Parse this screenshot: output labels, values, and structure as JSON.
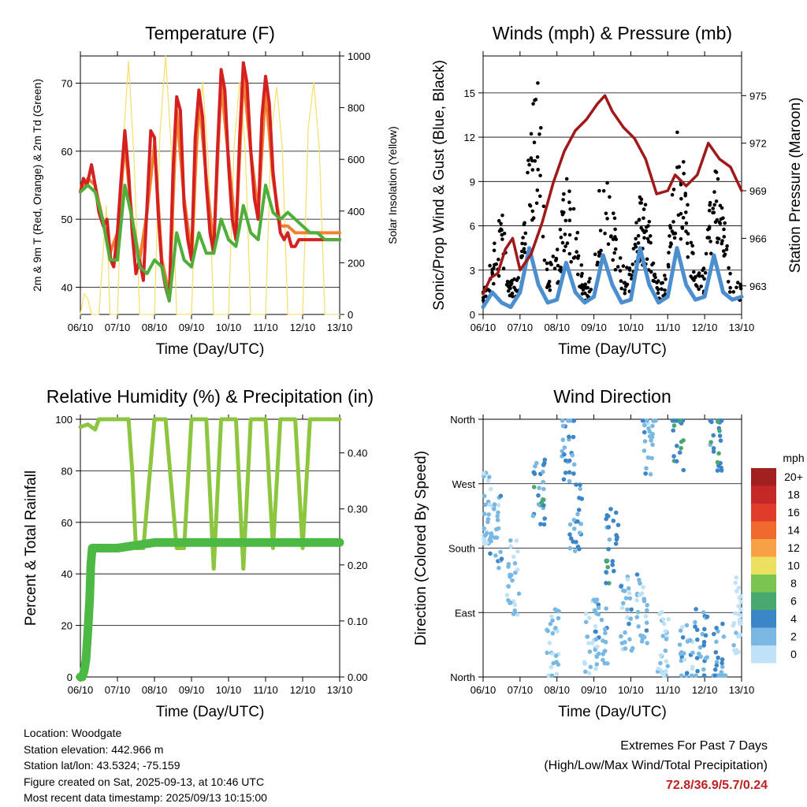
{
  "chart_data": [
    {
      "type": "line",
      "title": "Temperature (F)",
      "xlabel": "Time (Day/UTC)",
      "ylabel": "2m & 9m T (Red, Orange) & 2m Td (Green)",
      "y2label": "Solar Insolation (Yellow)",
      "x_ticks": [
        "06/10",
        "07/10",
        "08/10",
        "09/10",
        "10/10",
        "11/10",
        "12/10",
        "13/10"
      ],
      "ylim": [
        36,
        74
      ],
      "yticks": [
        40,
        50,
        60,
        70
      ],
      "y2lim": [
        0,
        1000
      ],
      "y2ticks": [
        0,
        200,
        400,
        600,
        800,
        1000
      ],
      "grid": true,
      "colors": {
        "t2m": "#d42020",
        "t9m": "#f08030",
        "td": "#4fae3a",
        "solar": "#f6e070"
      },
      "series": [
        {
          "key": "t2m",
          "axis": "left",
          "x": [
            0,
            0.08,
            0.18,
            0.3,
            0.4,
            0.5,
            0.62,
            0.72,
            0.82,
            0.9,
            1,
            1.1,
            1.2,
            1.3,
            1.4,
            1.5,
            1.6,
            1.7,
            1.8,
            1.9,
            2,
            2.1,
            2.2,
            2.3,
            2.4,
            2.5,
            2.6,
            2.7,
            2.8,
            2.9,
            3,
            3.1,
            3.2,
            3.3,
            3.4,
            3.5,
            3.6,
            3.7,
            3.8,
            3.9,
            4,
            4.1,
            4.2,
            4.3,
            4.4,
            4.5,
            4.6,
            4.7,
            4.8,
            4.9,
            5,
            5.1,
            5.2,
            5.3,
            5.4,
            5.5,
            5.6,
            5.7,
            5.8,
            5.9,
            6,
            6.1,
            6.2,
            6.3,
            6.4,
            6.5,
            6.6,
            6.7,
            6.8,
            6.9,
            7
          ],
          "values": [
            54,
            56,
            55,
            58,
            55,
            51,
            49,
            50,
            44,
            43,
            48,
            56,
            63,
            57,
            48,
            42,
            44,
            41,
            52,
            63,
            62,
            51,
            43,
            40,
            38,
            57,
            68,
            66,
            52,
            47,
            44,
            62,
            69,
            65,
            55,
            48,
            45,
            60,
            72,
            69,
            58,
            50,
            47,
            62,
            73,
            70,
            60,
            53,
            50,
            65,
            71,
            67,
            57,
            52,
            48,
            47,
            48,
            46,
            46,
            47,
            47,
            47,
            47,
            47,
            47,
            47,
            47,
            47,
            47,
            47,
            47
          ]
        },
        {
          "key": "t9m",
          "axis": "left",
          "x": [
            0,
            0.2,
            0.4,
            0.6,
            0.8,
            1,
            1.2,
            1.4,
            1.6,
            1.8,
            2,
            2.2,
            2.4,
            2.6,
            2.8,
            3,
            3.2,
            3.4,
            3.6,
            3.8,
            4,
            4.2,
            4.4,
            4.6,
            4.8,
            5,
            5.2,
            5.4,
            5.6,
            5.8,
            6,
            6.2,
            6.4,
            6.6,
            6.8,
            7
          ],
          "values": [
            54,
            56,
            55,
            50,
            45,
            48,
            61,
            50,
            44,
            51,
            61,
            44,
            39,
            66,
            53,
            45,
            68,
            56,
            46,
            70,
            59,
            48,
            71,
            60,
            51,
            69,
            56,
            49,
            49,
            48,
            48,
            48,
            48,
            48,
            48,
            48
          ]
        },
        {
          "key": "td",
          "axis": "left",
          "x": [
            0,
            0.2,
            0.4,
            0.6,
            0.8,
            1,
            1.2,
            1.4,
            1.6,
            1.8,
            2,
            2.2,
            2.4,
            2.6,
            2.8,
            3,
            3.2,
            3.4,
            3.6,
            3.8,
            4,
            4.2,
            4.4,
            4.6,
            4.8,
            5,
            5.2,
            5.4,
            5.6,
            5.8,
            6,
            6.2,
            6.4,
            6.6,
            6.8,
            7
          ],
          "values": [
            54,
            55,
            54,
            50,
            44,
            44,
            55,
            50,
            43,
            42,
            44,
            43,
            38,
            48,
            44,
            43,
            48,
            45,
            45,
            50,
            47,
            46,
            52,
            48,
            47,
            55,
            51,
            50,
            51,
            50,
            49,
            48,
            48,
            47,
            47,
            47
          ]
        },
        {
          "key": "solar",
          "axis": "right",
          "x": [
            0,
            0.1,
            0.2,
            0.3,
            0.5,
            0.7,
            0.8,
            1,
            1.15,
            1.3,
            1.45,
            1.6,
            1.8,
            2,
            2.15,
            2.3,
            2.45,
            2.6,
            2.8,
            3,
            3.15,
            3.3,
            3.45,
            3.6,
            3.8,
            4,
            4.15,
            4.3,
            4.45,
            4.6,
            4.8,
            5,
            5.15,
            5.3,
            5.45,
            5.6,
            5.8,
            6,
            6.15,
            6.3,
            6.45,
            6.6,
            6.8,
            7
          ],
          "values": [
            0,
            80,
            60,
            0,
            0,
            420,
            0,
            0,
            650,
            980,
            600,
            0,
            0,
            0,
            700,
            1000,
            650,
            0,
            0,
            0,
            620,
            900,
            600,
            0,
            0,
            0,
            650,
            900,
            640,
            0,
            0,
            0,
            700,
            880,
            650,
            0,
            0,
            0,
            720,
            900,
            640,
            0,
            0,
            0
          ]
        }
      ]
    },
    {
      "type": "line",
      "title": "Winds (mph) & Pressure (mb)",
      "xlabel": "Time (Day/UTC)",
      "ylabel": "Sonic/Prop Wind & Gust (Blue, Black)",
      "y2label": "Station Pressure (Maroon)",
      "x_ticks": [
        "06/10",
        "07/10",
        "08/10",
        "09/10",
        "10/10",
        "11/10",
        "12/10",
        "13/10"
      ],
      "ylim": [
        0,
        17.5
      ],
      "yticks": [
        0,
        3,
        6,
        9,
        12,
        15
      ],
      "y2lim": [
        961.2,
        977.5
      ],
      "y2ticks": [
        963,
        966,
        969,
        972,
        975
      ],
      "grid": true,
      "colors": {
        "wind": "#4b8fd0",
        "gust": "#000000",
        "pressure": "#a01818"
      },
      "series": [
        {
          "key": "wind",
          "axis": "left",
          "x": [
            0,
            0.25,
            0.5,
            0.75,
            1,
            1.25,
            1.5,
            1.75,
            2,
            2.25,
            2.5,
            2.75,
            3,
            3.25,
            3.5,
            3.75,
            4,
            4.25,
            4.5,
            4.75,
            5,
            5.25,
            5.5,
            5.75,
            6,
            6.25,
            6.5,
            6.75,
            7
          ],
          "values": [
            0.5,
            1.5,
            0.8,
            0.5,
            1.5,
            4.5,
            2,
            0.8,
            1,
            3.5,
            1.5,
            0.8,
            1.2,
            4,
            2,
            0.8,
            1,
            4.5,
            2,
            0.8,
            1.2,
            4.5,
            2,
            1,
            1.2,
            4,
            1.5,
            1,
            1.2
          ]
        },
        {
          "key": "gust",
          "axis": "left",
          "x": [
            0,
            0.25,
            0.5,
            0.75,
            1,
            1.25,
            1.5,
            1.75,
            2,
            2.25,
            2.5,
            2.75,
            3,
            3.25,
            3.5,
            3.75,
            4,
            4.25,
            4.5,
            4.75,
            5,
            5.25,
            5.5,
            5.75,
            6,
            6.25,
            6.5,
            6.75,
            7
          ],
          "values": [
            1.5,
            4,
            6.5,
            2,
            3,
            12,
            15,
            3,
            4,
            9,
            6,
            2,
            3,
            11,
            7,
            3,
            3,
            8,
            6,
            2,
            3,
            13,
            8,
            3,
            3,
            10,
            7,
            2,
            2
          ]
        },
        {
          "key": "pressure",
          "axis": "right",
          "x": [
            0,
            0.2,
            0.4,
            0.6,
            0.8,
            1,
            1.3,
            1.6,
            1.9,
            2.2,
            2.5,
            2.8,
            3.1,
            3.3,
            3.5,
            3.8,
            4.1,
            4.4,
            4.7,
            5,
            5.2,
            5.5,
            5.8,
            6.1,
            6.4,
            6.7,
            7
          ],
          "values": [
            962.5,
            963.5,
            963.8,
            965.3,
            966,
            964,
            965,
            967,
            969.5,
            971.5,
            972.8,
            973.5,
            974.5,
            975,
            974,
            973,
            972.3,
            971,
            968.8,
            969,
            970,
            969.3,
            970,
            972,
            971,
            970.5,
            969
          ]
        }
      ]
    },
    {
      "type": "line",
      "title": "Relative Humidity (%) & Precipitation (in)",
      "xlabel": "Time (Day/UTC)",
      "ylabel": "Percent & Total Rainfall",
      "x_ticks": [
        "06/10",
        "07/10",
        "08/10",
        "09/10",
        "10/10",
        "11/10",
        "12/10",
        "13/10"
      ],
      "ylim": [
        0,
        100
      ],
      "yticks": [
        0,
        20,
        40,
        60,
        80,
        100
      ],
      "y2lim": [
        0,
        0.46
      ],
      "y2ticks": [
        "0.00",
        "0.10",
        "0.20",
        "0.30",
        "0.40"
      ],
      "grid": true,
      "colors": {
        "rh": "#8cc63f",
        "precip": "#4cb944"
      },
      "series": [
        {
          "key": "rh",
          "axis": "left",
          "x": [
            0,
            0.2,
            0.4,
            0.5,
            0.6,
            0.8,
            1,
            1.1,
            1.3,
            1.4,
            1.5,
            1.7,
            2,
            2.3,
            2.6,
            2.8,
            3,
            3.2,
            3.4,
            3.6,
            3.8,
            4,
            4.2,
            4.4,
            4.6,
            4.8,
            5,
            5.2,
            5.4,
            5.6,
            5.8,
            6,
            6.2,
            6.4,
            6.6,
            6.8,
            7
          ],
          "values": [
            97,
            98,
            96,
            100,
            100,
            100,
            100,
            100,
            100,
            80,
            50,
            50,
            100,
            100,
            50,
            50,
            100,
            100,
            100,
            42,
            100,
            100,
            100,
            42,
            100,
            100,
            100,
            50,
            100,
            100,
            100,
            50,
            100,
            100,
            100,
            100,
            100
          ]
        },
        {
          "key": "precip",
          "axis": "right",
          "x": [
            0,
            0.05,
            0.1,
            0.15,
            0.2,
            0.25,
            0.28,
            0.32,
            1,
            2,
            3,
            4,
            5,
            6,
            7
          ],
          "values": [
            0,
            0,
            0.01,
            0.03,
            0.08,
            0.14,
            0.2,
            0.23,
            0.23,
            0.24,
            0.24,
            0.24,
            0.24,
            0.24,
            0.24
          ]
        }
      ]
    },
    {
      "type": "scatter",
      "title": "Wind Direction",
      "xlabel": "Time (Day/UTC)",
      "ylabel": "Direction (Colored By Speed)",
      "x_ticks": [
        "06/10",
        "07/10",
        "08/10",
        "09/10",
        "10/10",
        "11/10",
        "12/10",
        "13/10"
      ],
      "y_ticks": [
        "North",
        "East",
        "South",
        "West",
        "North"
      ],
      "ylim": [
        0,
        360
      ],
      "grid": true,
      "legend": {
        "title": "mph",
        "labels": [
          "20+",
          "18",
          "16",
          "14",
          "12",
          "10",
          "8",
          "6",
          "4",
          "2",
          "0"
        ],
        "colors": [
          "#a02020",
          "#c62828",
          "#e03c2c",
          "#f06a30",
          "#f8a044",
          "#ece060",
          "#7cc450",
          "#48a870",
          "#3c86c8",
          "#7ab8e4",
          "#bfe2f6"
        ],
        "placement": "right"
      },
      "clusters": [
        {
          "x": 0.1,
          "dir": 240,
          "speed": 1
        },
        {
          "x": 0.35,
          "dir": 200,
          "speed": 2
        },
        {
          "x": 0.8,
          "dir": 140,
          "speed": 1
        },
        {
          "x": 1.5,
          "dir": 250,
          "speed": 4
        },
        {
          "x": 1.9,
          "dir": 40,
          "speed": 1
        },
        {
          "x": 2.3,
          "dir": 330,
          "speed": 3
        },
        {
          "x": 2.5,
          "dir": 230,
          "speed": 3
        },
        {
          "x": 2.9,
          "dir": 60,
          "speed": 1
        },
        {
          "x": 3.2,
          "dir": 70,
          "speed": 2
        },
        {
          "x": 3.5,
          "dir": 180,
          "speed": 4
        },
        {
          "x": 3.9,
          "dir": 90,
          "speed": 2
        },
        {
          "x": 4.3,
          "dir": 95,
          "speed": 2
        },
        {
          "x": 4.5,
          "dir": 320,
          "speed": 2
        },
        {
          "x": 4.9,
          "dir": 40,
          "speed": 1
        },
        {
          "x": 5.3,
          "dir": 340,
          "speed": 5
        },
        {
          "x": 5.5,
          "dir": 20,
          "speed": 2
        },
        {
          "x": 5.9,
          "dir": 40,
          "speed": 3
        },
        {
          "x": 6.3,
          "dir": 340,
          "speed": 4
        },
        {
          "x": 6.4,
          "dir": 20,
          "speed": 3
        },
        {
          "x": 6.9,
          "dir": 85,
          "speed": 0
        }
      ]
    }
  ],
  "info": {
    "location": "Location: Woodgate",
    "elevation": "Station elevation: 442.966 m",
    "latlon": "Station lat/lon: 43.5324; -75.159",
    "created": "Figure created on Sat, 2025-09-13, at 10:46 UTC",
    "timestamp": "Most recent data timestamp: 2025/09/13 10:15:00"
  },
  "extremes": {
    "title": "Extremes For Past 7 Days",
    "subtitle": "(High/Low/Max Wind/Total Precipitation)",
    "values": "72.8/36.9/5.7/0.24"
  }
}
